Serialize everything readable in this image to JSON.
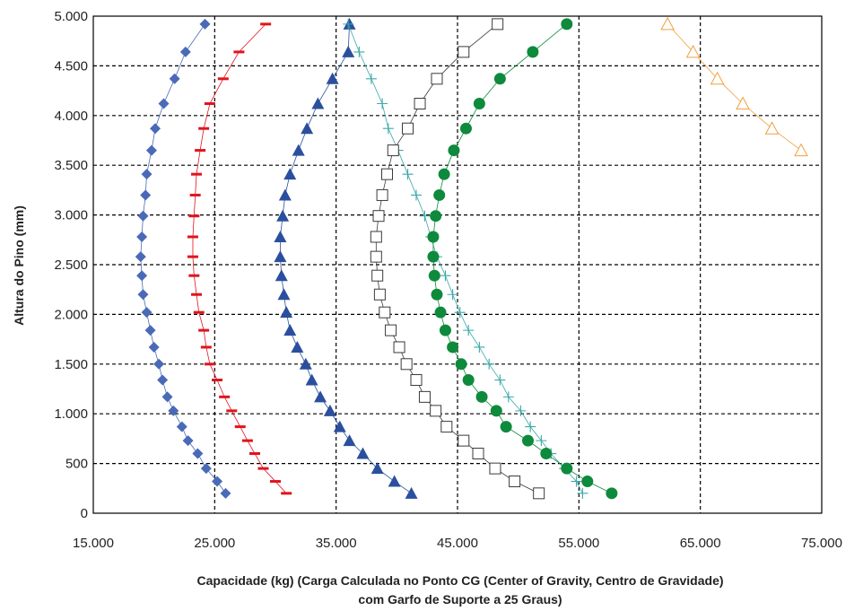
{
  "chart_data": {
    "type": "scatter",
    "title": "",
    "xlabel_line1": "Capacidade (kg) (Carga Calculada no Ponto CG (Center of Gravity, Centro de Gravidade)",
    "xlabel_line2": "com Garfo de Suporte a 25 Graus)",
    "ylabel": "Altura do Pino (mm)",
    "xlim": [
      15000,
      75000
    ],
    "ylim": [
      0,
      5000
    ],
    "grid": true,
    "legend": "none",
    "x_ticks": [
      {
        "value": 15000,
        "label": "15.000"
      },
      {
        "value": 25000,
        "label": "25.000"
      },
      {
        "value": 35000,
        "label": "35.000"
      },
      {
        "value": 45000,
        "label": "45.000"
      },
      {
        "value": 55000,
        "label": "55.000"
      },
      {
        "value": 65000,
        "label": "65.000"
      },
      {
        "value": 75000,
        "label": "75.000"
      }
    ],
    "y_ticks": [
      {
        "value": 0,
        "label": "0"
      },
      {
        "value": 500,
        "label": "500"
      },
      {
        "value": 1000,
        "label": "1.000"
      },
      {
        "value": 1500,
        "label": "1.500"
      },
      {
        "value": 2000,
        "label": "2.000"
      },
      {
        "value": 2500,
        "label": "2.500"
      },
      {
        "value": 3000,
        "label": "3.000"
      },
      {
        "value": 3500,
        "label": "3.500"
      },
      {
        "value": 4000,
        "label": "4.000"
      },
      {
        "value": 4500,
        "label": "4.500"
      },
      {
        "value": 5000,
        "label": "5.000"
      }
    ],
    "series": [
      {
        "marker": "diamond",
        "color": "#4a6ab8",
        "fill": true,
        "points": [
          [
            25900,
            200
          ],
          [
            25200,
            320
          ],
          [
            24300,
            450
          ],
          [
            23600,
            600
          ],
          [
            22800,
            730
          ],
          [
            22300,
            870
          ],
          [
            21600,
            1030
          ],
          [
            21100,
            1170
          ],
          [
            20700,
            1340
          ],
          [
            20400,
            1500
          ],
          [
            20000,
            1670
          ],
          [
            19700,
            1840
          ],
          [
            19400,
            2020
          ],
          [
            19100,
            2200
          ],
          [
            19000,
            2390
          ],
          [
            18900,
            2580
          ],
          [
            19000,
            2780
          ],
          [
            19100,
            2990
          ],
          [
            19300,
            3200
          ],
          [
            19400,
            3410
          ],
          [
            19800,
            3650
          ],
          [
            20100,
            3870
          ],
          [
            20800,
            4120
          ],
          [
            21700,
            4370
          ],
          [
            22600,
            4640
          ],
          [
            24200,
            4920
          ]
        ]
      },
      {
        "marker": "dash",
        "color": "#e0141e",
        "fill": true,
        "points": [
          [
            30900,
            200
          ],
          [
            30000,
            320
          ],
          [
            29000,
            450
          ],
          [
            28300,
            600
          ],
          [
            27700,
            730
          ],
          [
            27100,
            870
          ],
          [
            26400,
            1030
          ],
          [
            25800,
            1170
          ],
          [
            25200,
            1340
          ],
          [
            24600,
            1500
          ],
          [
            24300,
            1670
          ],
          [
            24100,
            1840
          ],
          [
            23700,
            2020
          ],
          [
            23500,
            2200
          ],
          [
            23300,
            2390
          ],
          [
            23200,
            2580
          ],
          [
            23200,
            2780
          ],
          [
            23300,
            2990
          ],
          [
            23400,
            3200
          ],
          [
            23500,
            3410
          ],
          [
            23800,
            3650
          ],
          [
            24100,
            3870
          ],
          [
            24600,
            4120
          ],
          [
            25700,
            4370
          ],
          [
            27000,
            4640
          ],
          [
            29200,
            4920
          ]
        ]
      },
      {
        "marker": "triangle",
        "color": "#2b4f9e",
        "fill": true,
        "points": [
          [
            41200,
            200
          ],
          [
            39800,
            320
          ],
          [
            38400,
            450
          ],
          [
            37200,
            600
          ],
          [
            36100,
            730
          ],
          [
            35300,
            870
          ],
          [
            34500,
            1030
          ],
          [
            33700,
            1170
          ],
          [
            33000,
            1340
          ],
          [
            32500,
            1500
          ],
          [
            31800,
            1670
          ],
          [
            31200,
            1840
          ],
          [
            30900,
            2020
          ],
          [
            30700,
            2200
          ],
          [
            30500,
            2390
          ],
          [
            30400,
            2580
          ],
          [
            30400,
            2780
          ],
          [
            30600,
            2990
          ],
          [
            30800,
            3200
          ],
          [
            31200,
            3410
          ],
          [
            31900,
            3650
          ],
          [
            32600,
            3870
          ],
          [
            33500,
            4120
          ],
          [
            34700,
            4370
          ],
          [
            36000,
            4640
          ],
          [
            36100,
            4920
          ]
        ]
      },
      {
        "marker": "plus",
        "color": "#3aa8a8",
        "fill": false,
        "points": [
          [
            55300,
            200
          ],
          [
            54800,
            320
          ],
          [
            53800,
            450
          ],
          [
            52700,
            600
          ],
          [
            51900,
            730
          ],
          [
            51000,
            870
          ],
          [
            50200,
            1030
          ],
          [
            49200,
            1170
          ],
          [
            48500,
            1340
          ],
          [
            47600,
            1500
          ],
          [
            46800,
            1670
          ],
          [
            45900,
            1840
          ],
          [
            45200,
            2020
          ],
          [
            44600,
            2200
          ],
          [
            44000,
            2390
          ],
          [
            43300,
            2580
          ],
          [
            42800,
            2780
          ],
          [
            42300,
            2990
          ],
          [
            41600,
            3200
          ],
          [
            40900,
            3410
          ],
          [
            40100,
            3650
          ],
          [
            39300,
            3870
          ],
          [
            38800,
            4120
          ],
          [
            37900,
            4370
          ],
          [
            36900,
            4640
          ],
          [
            36000,
            4920
          ]
        ]
      },
      {
        "marker": "square",
        "color": "#3a3a3a",
        "fill": false,
        "points": [
          [
            51700,
            200
          ],
          [
            49700,
            320
          ],
          [
            48100,
            450
          ],
          [
            46700,
            600
          ],
          [
            45500,
            730
          ],
          [
            44100,
            870
          ],
          [
            43200,
            1030
          ],
          [
            42300,
            1170
          ],
          [
            41600,
            1340
          ],
          [
            40800,
            1500
          ],
          [
            40200,
            1670
          ],
          [
            39500,
            1840
          ],
          [
            39000,
            2020
          ],
          [
            38600,
            2200
          ],
          [
            38400,
            2390
          ],
          [
            38300,
            2580
          ],
          [
            38300,
            2780
          ],
          [
            38500,
            2990
          ],
          [
            38800,
            3200
          ],
          [
            39200,
            3410
          ],
          [
            39700,
            3650
          ],
          [
            40900,
            3870
          ],
          [
            41900,
            4120
          ],
          [
            43300,
            4370
          ],
          [
            45500,
            4640
          ],
          [
            48300,
            4920
          ]
        ]
      },
      {
        "marker": "circle",
        "color": "#0e8a3c",
        "fill": true,
        "points": [
          [
            57700,
            200
          ],
          [
            55700,
            320
          ],
          [
            54000,
            450
          ],
          [
            52300,
            600
          ],
          [
            50800,
            730
          ],
          [
            49000,
            870
          ],
          [
            48200,
            1030
          ],
          [
            47000,
            1170
          ],
          [
            45900,
            1340
          ],
          [
            45300,
            1500
          ],
          [
            44600,
            1670
          ],
          [
            44000,
            1840
          ],
          [
            43600,
            2020
          ],
          [
            43300,
            2200
          ],
          [
            43100,
            2390
          ],
          [
            43000,
            2580
          ],
          [
            43000,
            2780
          ],
          [
            43200,
            2990
          ],
          [
            43500,
            3200
          ],
          [
            43900,
            3410
          ],
          [
            44700,
            3650
          ],
          [
            45700,
            3870
          ],
          [
            46800,
            4120
          ],
          [
            48500,
            4370
          ],
          [
            51200,
            4640
          ],
          [
            54000,
            4920
          ]
        ]
      },
      {
        "marker": "triangle-open",
        "color": "#f0a040",
        "fill": false,
        "points": [
          [
            73300,
            3650
          ],
          [
            70900,
            3870
          ],
          [
            68500,
            4120
          ],
          [
            66400,
            4370
          ],
          [
            64400,
            4640
          ],
          [
            62300,
            4920
          ]
        ]
      }
    ]
  }
}
